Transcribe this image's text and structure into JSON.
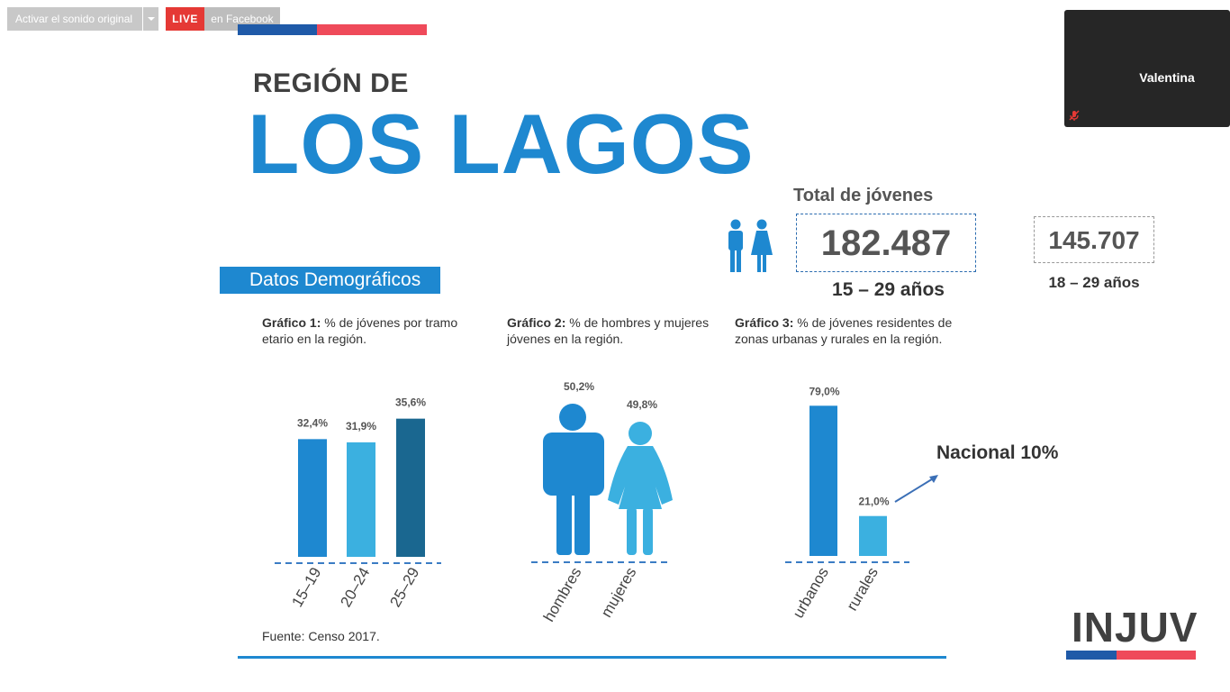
{
  "overlay": {
    "audio_button_label": "Activar el sonido original",
    "live_badge": "LIVE",
    "live_destination": "en Facebook"
  },
  "video_tile": {
    "participant_name": "Valentina",
    "mic_icon": "mic-muted-icon"
  },
  "slide": {
    "kicker": "REGIÓN DE",
    "title": "LOS LAGOS",
    "totals": {
      "heading": "Total de jóvenes",
      "main_value": "182.487",
      "main_range": "15 – 29 años",
      "adult_value": "145.707",
      "adult_range": "18 – 29 años",
      "icon": "people-icon"
    },
    "section_label": "Datos Demográficos",
    "graph1_caption_bold": "Gráfico 1:",
    "graph1_caption_text": " % de jóvenes por tramo etario en la región.",
    "graph2_caption_bold": "Gráfico 2:",
    "graph2_caption_text": " % de hombres y mujeres jóvenes en la región.",
    "graph3_caption_bold": "Gráfico 3:",
    "graph3_caption_text": " % de jóvenes residentes de zonas urbanas y rurales en la región.",
    "annotation": "Nacional 10%",
    "source": "Fuente: Censo 2017.",
    "logo": "INJUV"
  },
  "chart_data": [
    {
      "type": "bar",
      "categories": [
        "15-19",
        "20-24",
        "25-29"
      ],
      "values": [
        32.4,
        31.9,
        35.6
      ],
      "labels": [
        "32,4%",
        "31,9%",
        "35,6%"
      ],
      "colors": [
        "#1e88d0",
        "#3bb0e0",
        "#1a6790"
      ]
    },
    {
      "type": "pictogram",
      "categories": [
        "hombres",
        "mujeres"
      ],
      "values": [
        50.2,
        49.8
      ],
      "labels": [
        "50,2%",
        "49,8%"
      ],
      "colors": [
        "#1e88d0",
        "#3bb0e0"
      ]
    },
    {
      "type": "bar",
      "categories": [
        "urbanos",
        "rurales"
      ],
      "values": [
        79.0,
        21.0
      ],
      "labels": [
        "79,0%",
        "21,0%"
      ],
      "colors": [
        "#1e88d0",
        "#3bb0e0"
      ]
    }
  ],
  "colors": {
    "accent_blue": "#1e88d0",
    "brand_red": "#ef4a5a",
    "brand_navy": "#1f5aa8"
  }
}
